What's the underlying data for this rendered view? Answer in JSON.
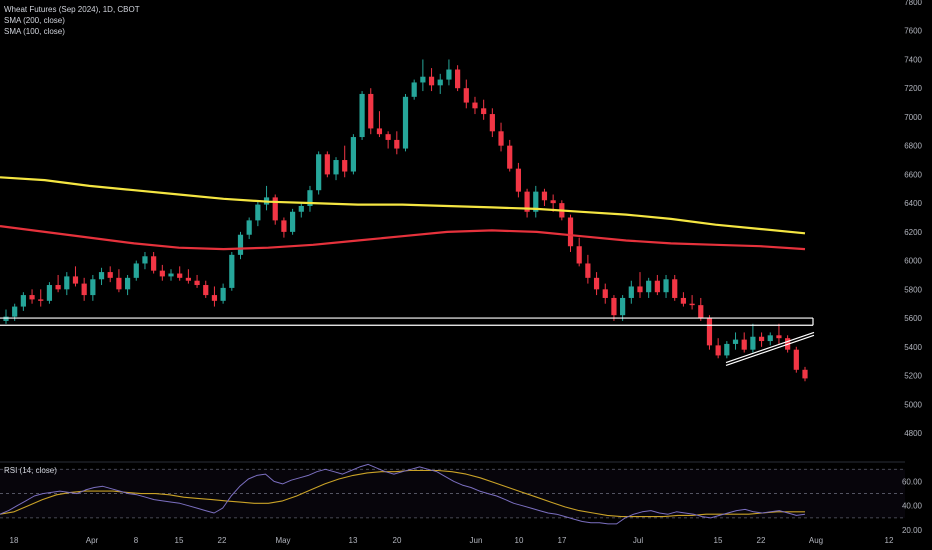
{
  "legend": {
    "symbol": "Wheat Futures (Sep 2024), 1D, CBOT",
    "sma200": "SMA (200, close)",
    "sma100": "SMA (100, close)",
    "rsi": "RSI (14, close)"
  },
  "colors": {
    "background": "#000000",
    "up": "#26a69a",
    "down": "#f23645",
    "sma200": "#f5e642",
    "sma100": "#e6323c",
    "rsi": "#7b6fc0",
    "rsi_ma": "#c9a227",
    "support": "#ffffff"
  },
  "chart_data": [
    {
      "type": "candlestick",
      "title": "Wheat Futures (Sep 2024), 1D, CBOT",
      "ylim": [
        4650,
        7800
      ],
      "y_ticks": [
        "7800",
        "7600",
        "7400",
        "7200",
        "7000",
        "6800",
        "6600",
        "6400",
        "6200",
        "6000",
        "5800",
        "5600",
        "5400",
        "5200",
        "5000",
        "4800"
      ],
      "x_ticks": [
        "18",
        "Apr",
        "8",
        "15",
        "22",
        "May",
        "13",
        "20",
        "Jun",
        "10",
        "17",
        "Jul",
        "15",
        "22",
        "Aug",
        "12"
      ],
      "candles": [
        [
          5580,
          5660,
          5560,
          5610
        ],
        [
          5610,
          5700,
          5580,
          5680
        ],
        [
          5680,
          5780,
          5650,
          5760
        ],
        [
          5760,
          5800,
          5700,
          5730
        ],
        [
          5730,
          5800,
          5680,
          5720
        ],
        [
          5720,
          5850,
          5700,
          5830
        ],
        [
          5830,
          5900,
          5780,
          5800
        ],
        [
          5800,
          5920,
          5760,
          5890
        ],
        [
          5890,
          5960,
          5820,
          5840
        ],
        [
          5840,
          5880,
          5720,
          5760
        ],
        [
          5760,
          5900,
          5720,
          5870
        ],
        [
          5870,
          5950,
          5830,
          5920
        ],
        [
          5920,
          5960,
          5850,
          5880
        ],
        [
          5880,
          5940,
          5780,
          5800
        ],
        [
          5800,
          5900,
          5760,
          5880
        ],
        [
          5880,
          6000,
          5860,
          5980
        ],
        [
          5980,
          6060,
          5940,
          6030
        ],
        [
          6030,
          6060,
          5910,
          5930
        ],
        [
          5930,
          5970,
          5860,
          5890
        ],
        [
          5890,
          5940,
          5860,
          5910
        ],
        [
          5910,
          5960,
          5860,
          5880
        ],
        [
          5880,
          5940,
          5840,
          5860
        ],
        [
          5860,
          5900,
          5810,
          5830
        ],
        [
          5830,
          5860,
          5740,
          5760
        ],
        [
          5760,
          5820,
          5680,
          5720
        ],
        [
          5720,
          5840,
          5700,
          5810
        ],
        [
          5810,
          6060,
          5790,
          6040
        ],
        [
          6040,
          6200,
          6010,
          6180
        ],
        [
          6180,
          6300,
          6150,
          6280
        ],
        [
          6280,
          6420,
          6240,
          6390
        ],
        [
          6390,
          6520,
          6350,
          6440
        ],
        [
          6440,
          6460,
          6250,
          6280
        ],
        [
          6280,
          6300,
          6160,
          6200
        ],
        [
          6200,
          6360,
          6180,
          6340
        ],
        [
          6340,
          6400,
          6300,
          6380
        ],
        [
          6380,
          6520,
          6340,
          6490
        ],
        [
          6490,
          6760,
          6460,
          6740
        ],
        [
          6740,
          6760,
          6580,
          6600
        ],
        [
          6600,
          6720,
          6560,
          6700
        ],
        [
          6700,
          6800,
          6580,
          6620
        ],
        [
          6620,
          6880,
          6600,
          6860
        ],
        [
          6860,
          7180,
          6840,
          7160
        ],
        [
          7160,
          7200,
          6880,
          6920
        ],
        [
          6920,
          7040,
          6860,
          6880
        ],
        [
          6880,
          6900,
          6780,
          6840
        ],
        [
          6840,
          6900,
          6740,
          6780
        ],
        [
          6780,
          7160,
          6760,
          7140
        ],
        [
          7140,
          7260,
          7120,
          7240
        ],
        [
          7240,
          7400,
          7180,
          7280
        ],
        [
          7280,
          7340,
          7180,
          7220
        ],
        [
          7220,
          7300,
          7160,
          7260
        ],
        [
          7260,
          7400,
          7220,
          7330
        ],
        [
          7330,
          7360,
          7180,
          7200
        ],
        [
          7200,
          7260,
          7060,
          7100
        ],
        [
          7100,
          7140,
          7020,
          7060
        ],
        [
          7060,
          7120,
          6980,
          7020
        ],
        [
          7020,
          7060,
          6860,
          6900
        ],
        [
          6900,
          6960,
          6760,
          6800
        ],
        [
          6800,
          6840,
          6620,
          6640
        ],
        [
          6640,
          6680,
          6440,
          6480
        ],
        [
          6480,
          6500,
          6300,
          6340
        ],
        [
          6340,
          6520,
          6300,
          6480
        ],
        [
          6480,
          6500,
          6380,
          6420
        ],
        [
          6420,
          6460,
          6340,
          6400
        ],
        [
          6400,
          6420,
          6280,
          6300
        ],
        [
          6300,
          6320,
          6060,
          6100
        ],
        [
          6100,
          6160,
          5960,
          5980
        ],
        [
          5980,
          6040,
          5840,
          5880
        ],
        [
          5880,
          5920,
          5760,
          5800
        ],
        [
          5800,
          5840,
          5700,
          5740
        ],
        [
          5740,
          5760,
          5580,
          5620
        ],
        [
          5620,
          5760,
          5580,
          5740
        ],
        [
          5740,
          5860,
          5700,
          5820
        ],
        [
          5820,
          5920,
          5740,
          5780
        ],
        [
          5780,
          5880,
          5740,
          5860
        ],
        [
          5860,
          5900,
          5760,
          5780
        ],
        [
          5780,
          5900,
          5740,
          5870
        ],
        [
          5870,
          5900,
          5720,
          5740
        ],
        [
          5740,
          5780,
          5680,
          5700
        ],
        [
          5700,
          5760,
          5660,
          5690
        ],
        [
          5690,
          5740,
          5580,
          5600
        ],
        [
          5600,
          5620,
          5380,
          5410
        ],
        [
          5410,
          5460,
          5320,
          5340
        ],
        [
          5340,
          5440,
          5320,
          5420
        ],
        [
          5420,
          5500,
          5380,
          5450
        ],
        [
          5450,
          5500,
          5360,
          5380
        ],
        [
          5380,
          5560,
          5360,
          5470
        ],
        [
          5470,
          5500,
          5400,
          5440
        ],
        [
          5440,
          5500,
          5410,
          5480
        ],
        [
          5480,
          5560,
          5420,
          5460
        ],
        [
          5460,
          5480,
          5360,
          5380
        ],
        [
          5380,
          5400,
          5220,
          5240
        ],
        [
          5240,
          5260,
          5160,
          5180
        ]
      ],
      "series": [
        {
          "name": "SMA (200, close)",
          "values": [
            6580,
            6560,
            6520,
            6490,
            6460,
            6430,
            6410,
            6400,
            6390,
            6390,
            6380,
            6370,
            6360,
            6340,
            6320,
            6290,
            6250,
            6220,
            6190
          ]
        },
        {
          "name": "SMA (100, close)",
          "values": [
            6240,
            6200,
            6160,
            6120,
            6090,
            6080,
            6090,
            6110,
            6140,
            6170,
            6200,
            6210,
            6200,
            6170,
            6140,
            6120,
            6110,
            6100,
            6080
          ]
        }
      ],
      "support": {
        "upper": 5600,
        "lower": 5550
      },
      "channel": [
        {
          "from": 5290,
          "to": 5500
        },
        {
          "from": 5270,
          "to": 5480
        }
      ]
    },
    {
      "type": "line",
      "title": "RSI (14, close)",
      "ylim": [
        20,
        76
      ],
      "y_ticks": [
        "60.00",
        "40.00",
        "20.00"
      ],
      "bands": [
        70,
        50,
        30
      ],
      "series": [
        {
          "name": "RSI (14, close)",
          "values": [
            33,
            36,
            40,
            44,
            48,
            50,
            51,
            52,
            51,
            50,
            53,
            55,
            56,
            54,
            52,
            50,
            49,
            47,
            45,
            44,
            43,
            42,
            40,
            38,
            36,
            34,
            38,
            48,
            56,
            62,
            65,
            66,
            60,
            58,
            61,
            63,
            65,
            68,
            70,
            68,
            66,
            69,
            72,
            74,
            71,
            68,
            66,
            68,
            70,
            72,
            70,
            68,
            64,
            60,
            57,
            55,
            52,
            50,
            48,
            45,
            42,
            40,
            38,
            36,
            34,
            33,
            31,
            29,
            27,
            26,
            26,
            25,
            25,
            30,
            33,
            35,
            36,
            34,
            33,
            35,
            34,
            33,
            31,
            30,
            32,
            34,
            36,
            37,
            35,
            34,
            35,
            36,
            34,
            32,
            33
          ]
        },
        {
          "name": "RSI MA",
          "values": [
            33,
            35,
            40,
            45,
            49,
            51,
            52,
            52,
            52,
            51,
            50,
            50,
            49,
            47,
            46,
            45,
            44,
            43,
            42,
            42,
            44,
            48,
            53,
            58,
            62,
            65,
            67,
            68,
            68,
            69,
            69,
            69,
            68,
            66,
            63,
            59,
            55,
            51,
            47,
            43,
            39,
            36,
            34,
            32,
            31,
            31,
            31,
            31,
            32,
            32,
            33,
            33,
            33,
            33,
            34,
            35,
            35,
            35
          ]
        }
      ]
    }
  ]
}
